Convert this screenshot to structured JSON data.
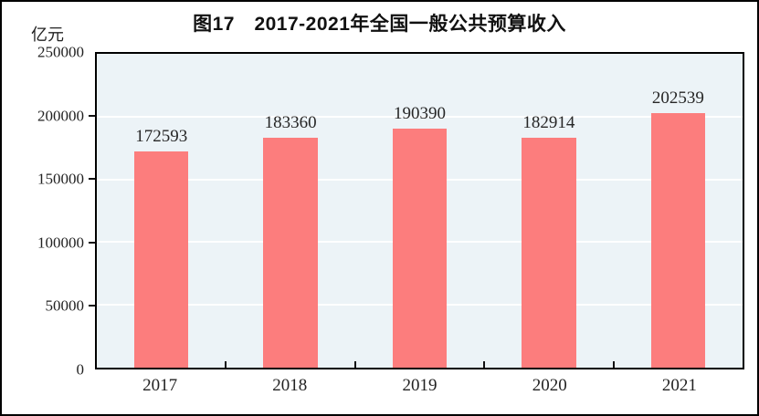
{
  "figure": {
    "title": "图17　2017-2021年全国一般公共预算收入",
    "unit_label": "亿元"
  },
  "chart_data": {
    "type": "bar",
    "title": "图17　2017-2021年全国一般公共预算收入",
    "categories": [
      "2017",
      "2018",
      "2019",
      "2020",
      "2021"
    ],
    "values": [
      172593,
      183360,
      190390,
      182914,
      202539
    ],
    "xlabel": "",
    "ylabel": "亿元",
    "ylim": [
      0,
      250000
    ],
    "yticks": [
      0,
      50000,
      100000,
      150000,
      200000,
      250000
    ],
    "grid": "horizontal",
    "legend_position": "none",
    "colors": {
      "bar_fill": "#fc7d7d",
      "plot_background": "#ecf3f7",
      "gridline": "#ffffff",
      "axis_border": "#000000",
      "text": "#262626"
    }
  }
}
